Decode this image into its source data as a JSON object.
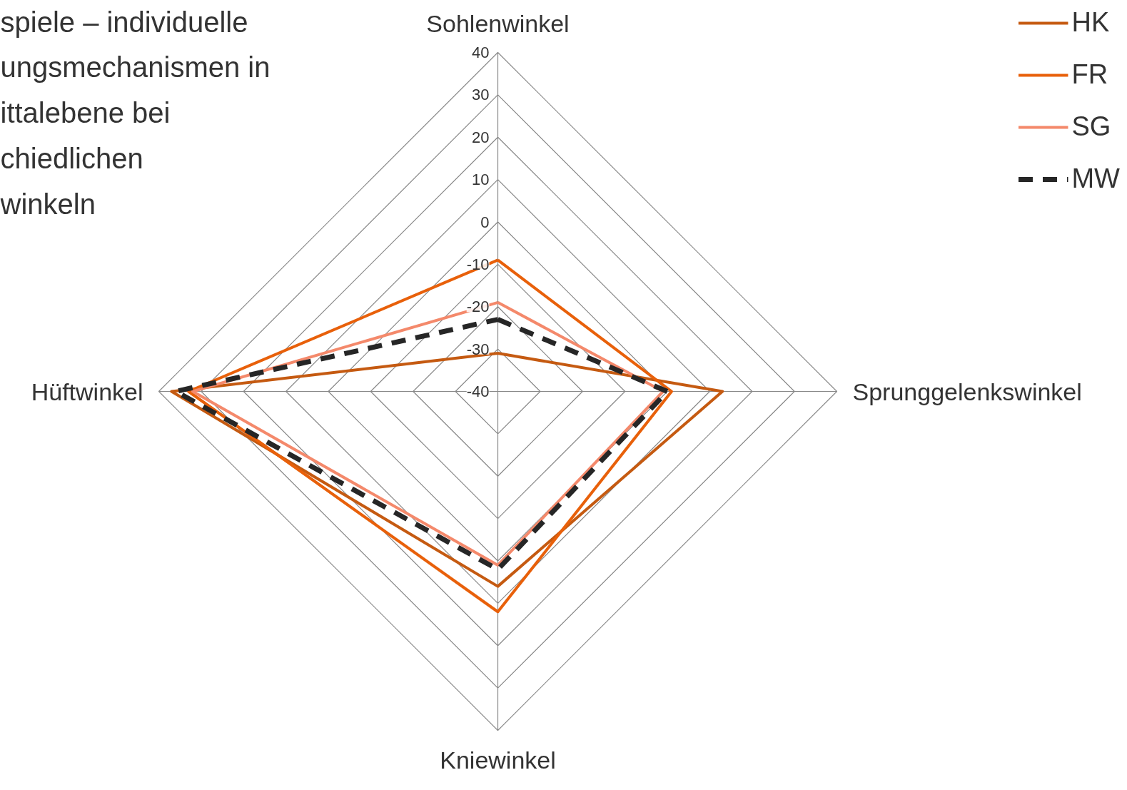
{
  "chart_data": {
    "type": "radar",
    "title": "spiele – individuelle\nungsmechanismen in\nittalebene bei\nchiedlichen\nwinkeln",
    "categories": [
      "Sohlenwinkel",
      "Sprunggelenkswinkel",
      "Kniewinkel",
      "Hüftwinkel"
    ],
    "ylim": [
      -40,
      40
    ],
    "yticks": [
      -40,
      -30,
      -20,
      -10,
      0,
      10,
      20,
      30,
      40
    ],
    "grid": true,
    "legend": "top right",
    "series": [
      {
        "name": "HK",
        "color": "#c55a11",
        "values": [
          -31,
          13,
          6,
          37
        ]
      },
      {
        "name": "FR",
        "color": "#e8600a",
        "values": [
          -9,
          1,
          12,
          33
        ]
      },
      {
        "name": "SG",
        "color": "#f4896b",
        "values": [
          -19,
          -1,
          1,
          32
        ]
      },
      {
        "name": "MW",
        "color": "#262626",
        "values": [
          -23,
          0,
          2,
          36
        ],
        "line_style": "dashed"
      }
    ]
  }
}
